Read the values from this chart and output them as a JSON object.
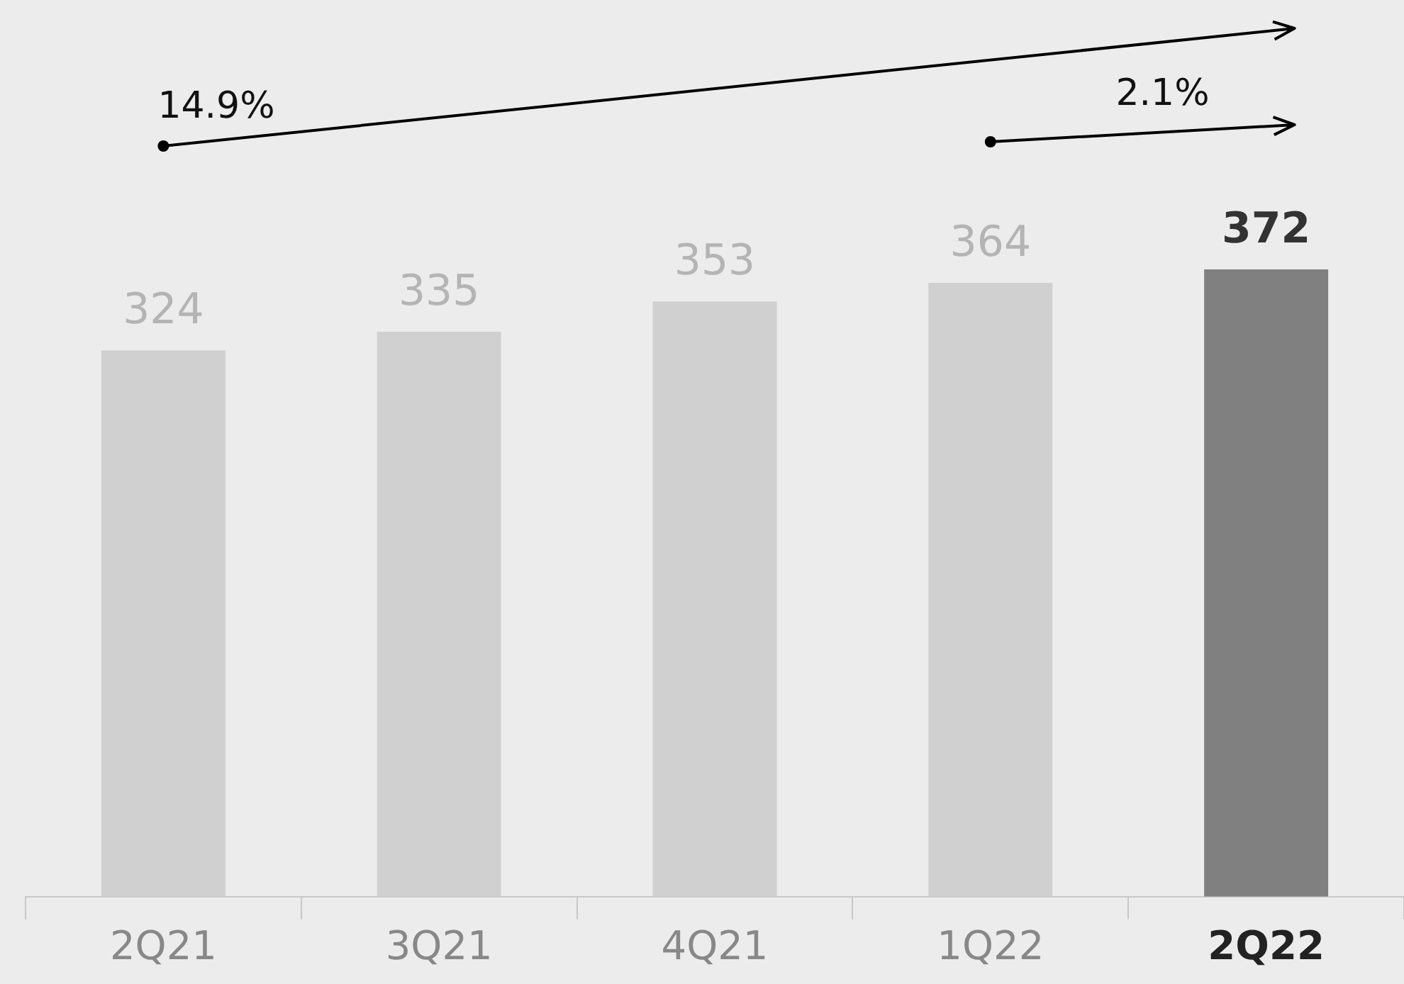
{
  "chart_data": {
    "type": "bar",
    "categories": [
      "2Q21",
      "3Q21",
      "4Q21",
      "1Q22",
      "2Q22"
    ],
    "values": [
      324,
      335,
      353,
      364,
      372
    ],
    "colors": [
      "#d0d0d0",
      "#d0d0d0",
      "#d0d0d0",
      "#d0d0d0",
      "#808080"
    ],
    "data_labels": true,
    "annotations": [
      "14.9%",
      "2.1%"
    ]
  }
}
